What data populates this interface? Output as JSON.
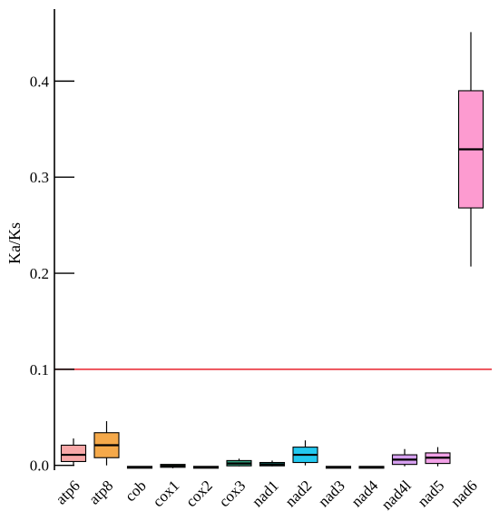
{
  "chart_data": {
    "type": "boxplot",
    "ylabel": "Ka/Ks",
    "xlabel": "",
    "ylim": [
      -0.005,
      0.475
    ],
    "yticks": [
      0.0,
      0.1,
      0.2,
      0.3,
      0.4
    ],
    "ytick_labels": [
      "0.0",
      "0.1",
      "0.2",
      "0.3",
      "0.4"
    ],
    "reference_line": {
      "y": 0.1,
      "color": "#e8212b"
    },
    "grid": false,
    "legend": "none",
    "categories": [
      "atp6",
      "atp8",
      "cob",
      "cox1",
      "cox2",
      "cox3",
      "nad1",
      "nad2",
      "nad3",
      "nad4",
      "nad4l",
      "nad5",
      "nad6"
    ],
    "boxes": [
      {
        "label": "atp6",
        "min": 0.0,
        "q1": 0.004,
        "median": 0.011,
        "q3": 0.021,
        "max": 0.028,
        "color": "#f7a8a8"
      },
      {
        "label": "atp8",
        "min": 0.0,
        "q1": 0.008,
        "median": 0.021,
        "q3": 0.034,
        "max": 0.046,
        "color": "#f5a94a"
      },
      {
        "label": "cob",
        "min": -0.002,
        "q1": -0.002,
        "median": -0.002,
        "q3": -0.002,
        "max": -0.002,
        "color": "#8a8a5a"
      },
      {
        "label": "cox1",
        "min": -0.003,
        "q1": -0.002,
        "median": -0.0005,
        "q3": 0.001,
        "max": 0.001,
        "color": "#8fcf8f"
      },
      {
        "label": "cox2",
        "min": -0.002,
        "q1": -0.002,
        "median": -0.002,
        "q3": -0.002,
        "max": -0.002,
        "color": "#9e9e9e"
      },
      {
        "label": "cox3",
        "min": -0.001,
        "q1": -0.0005,
        "median": 0.002,
        "q3": 0.005,
        "max": 0.007,
        "color": "#2f9a7a"
      },
      {
        "label": "nad1",
        "min": -0.001,
        "q1": -0.0005,
        "median": 0.001,
        "q3": 0.003,
        "max": 0.005,
        "color": "#1a9a8a"
      },
      {
        "label": "nad2",
        "min": 0.0,
        "q1": 0.003,
        "median": 0.011,
        "q3": 0.019,
        "max": 0.026,
        "color": "#23c9f0"
      },
      {
        "label": "nad3",
        "min": -0.002,
        "q1": -0.002,
        "median": -0.002,
        "q3": -0.002,
        "max": -0.002,
        "color": "#3f7fbf"
      },
      {
        "label": "nad4",
        "min": -0.002,
        "q1": -0.002,
        "median": -0.002,
        "q3": -0.002,
        "max": -0.002,
        "color": "#6f6fcf"
      },
      {
        "label": "nad4l",
        "min": -0.001,
        "q1": 0.001,
        "median": 0.006,
        "q3": 0.011,
        "max": 0.017,
        "color": "#d6a0f0"
      },
      {
        "label": "nad5",
        "min": -0.001,
        "q1": 0.002,
        "median": 0.008,
        "q3": 0.013,
        "max": 0.019,
        "color": "#f1a1e6"
      },
      {
        "label": "nad6",
        "min": 0.207,
        "q1": 0.268,
        "median": 0.329,
        "q3": 0.39,
        "max": 0.451,
        "color": "#fd9bd0"
      }
    ]
  }
}
